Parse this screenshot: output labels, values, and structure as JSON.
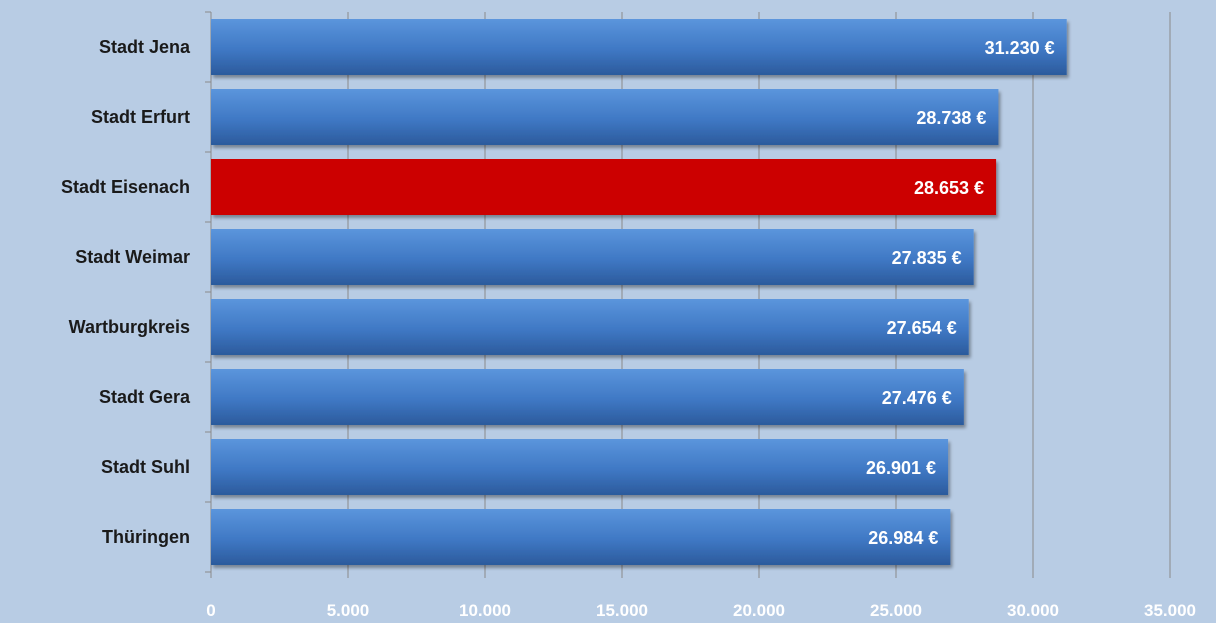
{
  "chart_data": {
    "type": "bar",
    "orientation": "horizontal",
    "categories": [
      "Stadt Jena",
      "Stadt Erfurt",
      "Stadt Eisenach",
      "Stadt Weimar",
      "Wartburgkreis",
      "Stadt Gera",
      "Stadt Suhl",
      "Thüringen"
    ],
    "values": [
      31230,
      28738,
      28653,
      27835,
      27654,
      27476,
      26901,
      26984
    ],
    "value_labels": [
      "31.230 €",
      "28.738 €",
      "28.653 €",
      "27.835 €",
      "27.654 €",
      "27.476 €",
      "26.901 €",
      "26.984 €"
    ],
    "xlim": [
      0,
      35000
    ],
    "x_ticks": [
      0,
      5000,
      10000,
      15000,
      20000,
      25000,
      30000,
      35000
    ],
    "x_tick_labels": [
      "0",
      "5.000",
      "10.000",
      "15.000",
      "20.000",
      "25.000",
      "30.000",
      "35.000"
    ],
    "highlighted_category": "Stadt Eisenach",
    "grid": "vertical",
    "legend": "none",
    "colors": {
      "background": "#b8cce4",
      "bar": "#3f78c4",
      "bar_light": "#5b95dc",
      "bar_dark": "#2b5a9c",
      "highlight": "#cc0000",
      "gridline": "#8a8a8a",
      "category_text": "#1a1a1a",
      "value_text": "#ffffff",
      "tick_text": "#ffffff"
    }
  }
}
